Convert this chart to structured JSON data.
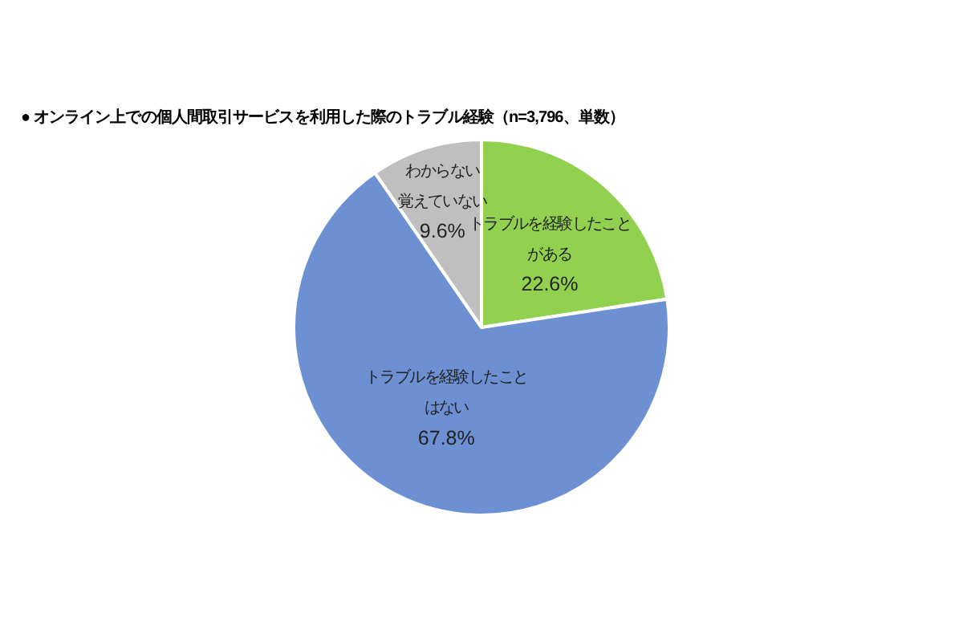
{
  "chart_data": {
    "type": "pie",
    "title": "● オンライン上での個人間取引サービスを利用した際のトラブル経験（n=3,796、単数）",
    "categories": [
      "トラブルを経験したことがある",
      "トラブルを経験したことはない",
      "わからない覚えていない"
    ],
    "values": [
      22.6,
      67.8,
      9.6
    ],
    "colors": [
      "#92d050",
      "#6d90d2",
      "#bfbfbf"
    ],
    "value_labels": [
      "22.6%",
      "67.8%",
      "9.6%"
    ]
  }
}
